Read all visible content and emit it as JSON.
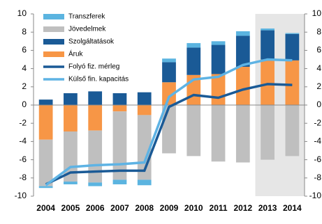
{
  "chart_data": {
    "type": "bar",
    "categories": [
      "2004",
      "2005",
      "2006",
      "2007",
      "2008",
      "2009",
      "2010",
      "2011",
      "2012",
      "2013",
      "2014"
    ],
    "shaded_from": "2013",
    "series": [
      {
        "name": "Transzferek",
        "color": "#5bb4e0",
        "values": [
          -0.2,
          -0.3,
          -0.4,
          -0.5,
          -0.6,
          0.4,
          0.5,
          0.4,
          0.5,
          0.2,
          0.1
        ]
      },
      {
        "name": "Jövedelmek",
        "color": "#bfbfbf",
        "values": [
          -5.1,
          -5.5,
          -5.7,
          -7.5,
          -7.1,
          -5.3,
          -5.6,
          -6.2,
          -6.3,
          -6.0,
          -5.6
        ]
      },
      {
        "name": "Szolgáltatások",
        "color": "#1a5a96",
        "values": [
          0.6,
          1.3,
          1.5,
          1.3,
          1.4,
          2.2,
          3.0,
          3.2,
          3.4,
          3.2,
          2.9
        ]
      },
      {
        "name": "Áruk",
        "color": "#f79646",
        "values": [
          -3.8,
          -2.9,
          -2.8,
          -0.7,
          -1.1,
          2.5,
          3.3,
          3.4,
          4.2,
          5.0,
          4.9
        ]
      },
      {
        "name": "Folyó fiz. mérleg",
        "type": "line",
        "color": "#1a5a96",
        "values": [
          -8.7,
          -7.4,
          -7.3,
          -7.2,
          -7.2,
          -0.2,
          1.1,
          0.8,
          1.7,
          2.3,
          2.2
        ]
      },
      {
        "name": "Külső fin. kapacitás",
        "type": "line",
        "color": "#5eb3e4",
        "values": [
          -8.8,
          -6.8,
          -6.6,
          -6.5,
          -6.3,
          0.9,
          2.8,
          3.1,
          4.4,
          5.0,
          4.9
        ]
      }
    ],
    "ylim": [
      -10,
      10
    ],
    "yticks": [
      -10,
      -8,
      -6,
      -4,
      -2,
      0,
      2,
      4,
      6,
      8,
      10
    ],
    "y2lim": [
      -10,
      10
    ],
    "y2ticks": [
      -10,
      -8,
      -6,
      -4,
      -2,
      0,
      2,
      4,
      6,
      8,
      10
    ]
  }
}
